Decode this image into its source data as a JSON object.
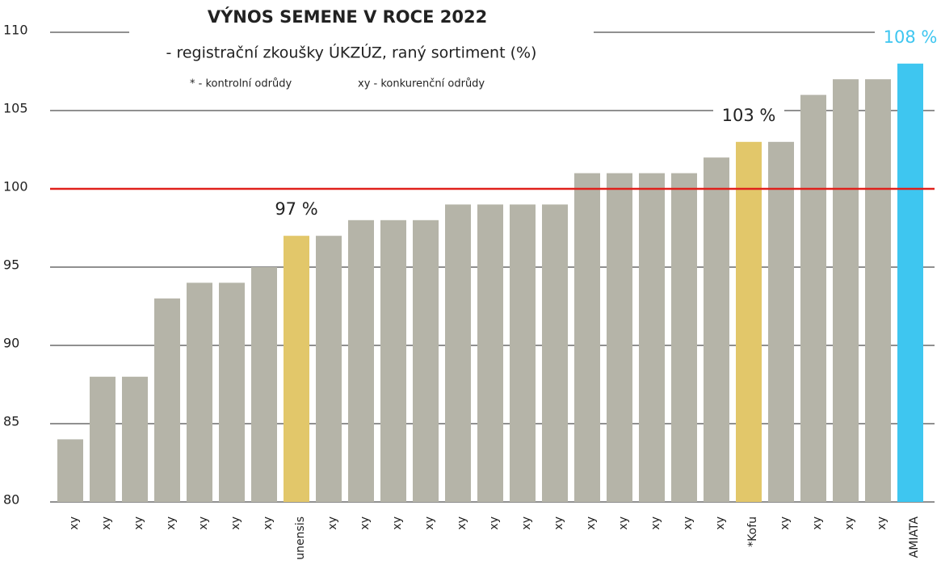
{
  "chart_data": {
    "type": "bar",
    "title": "VÝNOS SEMENE V ROCE 2022",
    "subtitle": "- registrační zkoušky ÚKZÚZ, raný sortiment (%)",
    "notes": [
      "* - kontrolní odrůdy",
      "xy - konkurenční odrůdy"
    ],
    "categories": [
      "xy",
      "xy",
      "xy",
      "xy",
      "xy",
      "xy",
      "xy",
      "unensis",
      "xy",
      "xy",
      "xy",
      "xy",
      "xy",
      "xy",
      "xy",
      "xy",
      "xy",
      "xy",
      "xy",
      "xy",
      "xy",
      "*Kofu",
      "xy",
      "xy",
      "xy",
      "xy",
      "AMIATA"
    ],
    "values": [
      84,
      88,
      88,
      93,
      94,
      94,
      95,
      97,
      97,
      98,
      98,
      98,
      99,
      99,
      99,
      99,
      101,
      101,
      101,
      101,
      102,
      103,
      103,
      106,
      107,
      107,
      108
    ],
    "value_labels": [
      null,
      null,
      null,
      null,
      null,
      null,
      null,
      "97 %",
      null,
      null,
      null,
      null,
      null,
      null,
      null,
      null,
      null,
      null,
      null,
      null,
      null,
      "103 %",
      null,
      null,
      null,
      null,
      "108 %"
    ],
    "colors": [
      "#b5b4a8",
      "#b5b4a8",
      "#b5b4a8",
      "#b5b4a8",
      "#b5b4a8",
      "#b5b4a8",
      "#b5b4a8",
      "#e2c76a",
      "#b5b4a8",
      "#b5b4a8",
      "#b5b4a8",
      "#b5b4a8",
      "#b5b4a8",
      "#b5b4a8",
      "#b5b4a8",
      "#b5b4a8",
      "#b5b4a8",
      "#b5b4a8",
      "#b5b4a8",
      "#b5b4a8",
      "#b5b4a8",
      "#e2c76a",
      "#b5b4a8",
      "#b5b4a8",
      "#b5b4a8",
      "#b5b4a8",
      "#3ec6f0"
    ],
    "value_label_colors": [
      null,
      null,
      null,
      null,
      null,
      null,
      null,
      "#222222",
      null,
      null,
      null,
      null,
      null,
      null,
      null,
      null,
      null,
      null,
      null,
      null,
      null,
      "#222222",
      null,
      null,
      null,
      null,
      "#3ec6f0"
    ],
    "reference_line": {
      "value": 100,
      "color": "#e0201b"
    },
    "ylim": [
      80,
      110
    ],
    "yticks": [
      80,
      85,
      90,
      95,
      100,
      105,
      110
    ],
    "grid": true
  }
}
